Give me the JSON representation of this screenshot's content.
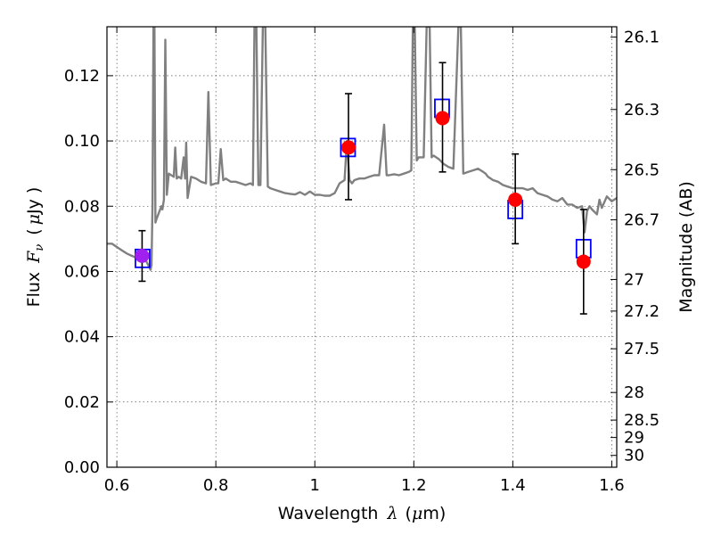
{
  "chart_data": {
    "type": "scatter",
    "xlabel": "Wavelength",
    "xlabel_symbol": "λ",
    "xlabel_unit_open": "(",
    "xlabel_unit_mu": "μ",
    "xlabel_unit_rest": "m)",
    "ylabel": "Flux",
    "ylabel_symbol": "F",
    "ylabel_subscript": "ν",
    "ylabel_unit_open": "(",
    "ylabel_unit_mu": "μ",
    "ylabel_unit_rest": "Jy )",
    "y2label": "Magnitude (AB)",
    "xlim": [
      0.58,
      1.61
    ],
    "ylim": [
      0.0,
      0.135
    ],
    "grid": true,
    "xticks": [
      {
        "value": 0.6,
        "label": "0.6"
      },
      {
        "value": 0.8,
        "label": "0.8"
      },
      {
        "value": 1.0,
        "label": "1"
      },
      {
        "value": 1.2,
        "label": "1.2"
      },
      {
        "value": 1.4,
        "label": "1.4"
      },
      {
        "value": 1.6,
        "label": "1.6"
      }
    ],
    "yticks": [
      {
        "value": 0.0,
        "label": "0.00"
      },
      {
        "value": 0.02,
        "label": "0.02"
      },
      {
        "value": 0.04,
        "label": "0.04"
      },
      {
        "value": 0.06,
        "label": "0.06"
      },
      {
        "value": 0.08,
        "label": "0.08"
      },
      {
        "value": 0.1,
        "label": "0.10"
      },
      {
        "value": 0.12,
        "label": "0.12"
      }
    ],
    "y2ticks": [
      {
        "mag": 26.1,
        "label": "26.1"
      },
      {
        "mag": 26.3,
        "label": "26.3"
      },
      {
        "mag": 26.5,
        "label": "26.5"
      },
      {
        "mag": 26.7,
        "label": "26.7"
      },
      {
        "mag": 27.0,
        "label": "27"
      },
      {
        "mag": 27.2,
        "label": "27.2"
      },
      {
        "mag": 27.5,
        "label": "27.5"
      },
      {
        "mag": 28.0,
        "label": "28"
      },
      {
        "mag": 28.5,
        "label": "28.5"
      },
      {
        "mag": 29.0,
        "label": "29"
      },
      {
        "mag": 30.0,
        "label": "30"
      }
    ],
    "model_spectrum": {
      "color": "#808080",
      "points": [
        [
          0.58,
          0.0685
        ],
        [
          0.59,
          0.0685
        ],
        [
          0.6,
          0.0675
        ],
        [
          0.61,
          0.0665
        ],
        [
          0.62,
          0.0655
        ],
        [
          0.63,
          0.0648
        ],
        [
          0.64,
          0.0642
        ],
        [
          0.65,
          0.0638
        ],
        [
          0.655,
          0.0635
        ],
        [
          0.66,
          0.063
        ],
        [
          0.665,
          0.0615
        ],
        [
          0.668,
          0.0605
        ],
        [
          0.67,
          0.062
        ],
        [
          0.672,
          0.08
        ],
        [
          0.674,
          0.135
        ],
        [
          0.676,
          0.135
        ],
        [
          0.678,
          0.075
        ],
        [
          0.68,
          0.076
        ],
        [
          0.685,
          0.078
        ],
        [
          0.69,
          0.08
        ],
        [
          0.692,
          0.079
        ],
        [
          0.695,
          0.082
        ],
        [
          0.698,
          0.131
        ],
        [
          0.701,
          0.0835
        ],
        [
          0.705,
          0.09
        ],
        [
          0.71,
          0.0895
        ],
        [
          0.715,
          0.089
        ],
        [
          0.718,
          0.098
        ],
        [
          0.721,
          0.0885
        ],
        [
          0.725,
          0.089
        ],
        [
          0.73,
          0.0885
        ],
        [
          0.735,
          0.095
        ],
        [
          0.738,
          0.0885
        ],
        [
          0.74,
          0.0995
        ],
        [
          0.743,
          0.0825
        ],
        [
          0.75,
          0.089
        ],
        [
          0.76,
          0.0885
        ],
        [
          0.77,
          0.0875
        ],
        [
          0.78,
          0.087
        ],
        [
          0.785,
          0.115
        ],
        [
          0.79,
          0.0865
        ],
        [
          0.8,
          0.087
        ],
        [
          0.805,
          0.087
        ],
        [
          0.81,
          0.0975
        ],
        [
          0.815,
          0.088
        ],
        [
          0.82,
          0.0885
        ],
        [
          0.83,
          0.0875
        ],
        [
          0.84,
          0.0875
        ],
        [
          0.85,
          0.087
        ],
        [
          0.86,
          0.0865
        ],
        [
          0.87,
          0.087
        ],
        [
          0.875,
          0.0865
        ],
        [
          0.878,
          0.135
        ],
        [
          0.882,
          0.135
        ],
        [
          0.886,
          0.0865
        ],
        [
          0.89,
          0.0865
        ],
        [
          0.895,
          0.135
        ],
        [
          0.9,
          0.135
        ],
        [
          0.905,
          0.086
        ],
        [
          0.91,
          0.0855
        ],
        [
          0.92,
          0.085
        ],
        [
          0.93,
          0.0845
        ],
        [
          0.94,
          0.084
        ],
        [
          0.95,
          0.0838
        ],
        [
          0.96,
          0.0836
        ],
        [
          0.97,
          0.0843
        ],
        [
          0.98,
          0.0835
        ],
        [
          0.99,
          0.0845
        ],
        [
          1.0,
          0.0835
        ],
        [
          1.01,
          0.0835
        ],
        [
          1.02,
          0.0832
        ],
        [
          1.03,
          0.0832
        ],
        [
          1.04,
          0.084
        ],
        [
          1.05,
          0.087
        ],
        [
          1.06,
          0.088
        ],
        [
          1.065,
          0.1
        ],
        [
          1.07,
          0.088
        ],
        [
          1.075,
          0.087
        ],
        [
          1.08,
          0.088
        ],
        [
          1.09,
          0.0885
        ],
        [
          1.1,
          0.0885
        ],
        [
          1.11,
          0.089
        ],
        [
          1.12,
          0.0895
        ],
        [
          1.13,
          0.0895
        ],
        [
          1.14,
          0.105
        ],
        [
          1.145,
          0.0895
        ],
        [
          1.15,
          0.0895
        ],
        [
          1.16,
          0.0898
        ],
        [
          1.17,
          0.0895
        ],
        [
          1.18,
          0.09
        ],
        [
          1.19,
          0.0905
        ],
        [
          1.195,
          0.091
        ],
        [
          1.198,
          0.135
        ],
        [
          1.202,
          0.135
        ],
        [
          1.206,
          0.094
        ],
        [
          1.21,
          0.095
        ],
        [
          1.22,
          0.095
        ],
        [
          1.226,
          0.135
        ],
        [
          1.232,
          0.135
        ],
        [
          1.236,
          0.095
        ],
        [
          1.24,
          0.0955
        ],
        [
          1.25,
          0.0945
        ],
        [
          1.26,
          0.093
        ],
        [
          1.27,
          0.092
        ],
        [
          1.28,
          0.0915
        ],
        [
          1.29,
          0.135
        ],
        [
          1.295,
          0.135
        ],
        [
          1.3,
          0.09
        ],
        [
          1.31,
          0.0905
        ],
        [
          1.32,
          0.091
        ],
        [
          1.33,
          0.0915
        ],
        [
          1.34,
          0.0905
        ],
        [
          1.345,
          0.09
        ],
        [
          1.35,
          0.089
        ],
        [
          1.36,
          0.088
        ],
        [
          1.37,
          0.0875
        ],
        [
          1.38,
          0.0865
        ],
        [
          1.39,
          0.086
        ],
        [
          1.4,
          0.0855
        ],
        [
          1.41,
          0.0855
        ],
        [
          1.42,
          0.0855
        ],
        [
          1.43,
          0.085
        ],
        [
          1.44,
          0.0855
        ],
        [
          1.45,
          0.084
        ],
        [
          1.46,
          0.0835
        ],
        [
          1.47,
          0.083
        ],
        [
          1.48,
          0.082
        ],
        [
          1.49,
          0.0815
        ],
        [
          1.5,
          0.0825
        ],
        [
          1.51,
          0.0805
        ],
        [
          1.52,
          0.0805
        ],
        [
          1.53,
          0.0795
        ],
        [
          1.54,
          0.08
        ],
        [
          1.545,
          0.072
        ],
        [
          1.55,
          0.0785
        ],
        [
          1.555,
          0.08
        ],
        [
          1.56,
          0.079
        ],
        [
          1.57,
          0.0775
        ],
        [
          1.575,
          0.082
        ],
        [
          1.58,
          0.0795
        ],
        [
          1.59,
          0.083
        ],
        [
          1.6,
          0.0815
        ],
        [
          1.61,
          0.0825
        ]
      ]
    },
    "model_photometry": {
      "marker": "open-square",
      "color": "#0000ff",
      "points": [
        {
          "x": 0.652,
          "y": 0.064
        },
        {
          "x": 1.067,
          "y": 0.098
        },
        {
          "x": 1.257,
          "y": 0.11
        },
        {
          "x": 1.405,
          "y": 0.079
        },
        {
          "x": 1.543,
          "y": 0.067
        }
      ]
    },
    "observed": {
      "marker": "filled-circle",
      "color": "#ff0000",
      "errorbar_color": "#000000",
      "points": [
        {
          "x": 0.651,
          "y": 0.0648,
          "ylow": 0.057,
          "yhigh": 0.0725,
          "color": "#a020f0"
        },
        {
          "x": 1.068,
          "y": 0.098,
          "ylow": 0.082,
          "yhigh": 0.1145
        },
        {
          "x": 1.258,
          "y": 0.107,
          "ylow": 0.0905,
          "yhigh": 0.124
        },
        {
          "x": 1.405,
          "y": 0.082,
          "ylow": 0.0685,
          "yhigh": 0.096
        },
        {
          "x": 1.543,
          "y": 0.063,
          "ylow": 0.047,
          "yhigh": 0.079
        }
      ]
    }
  }
}
